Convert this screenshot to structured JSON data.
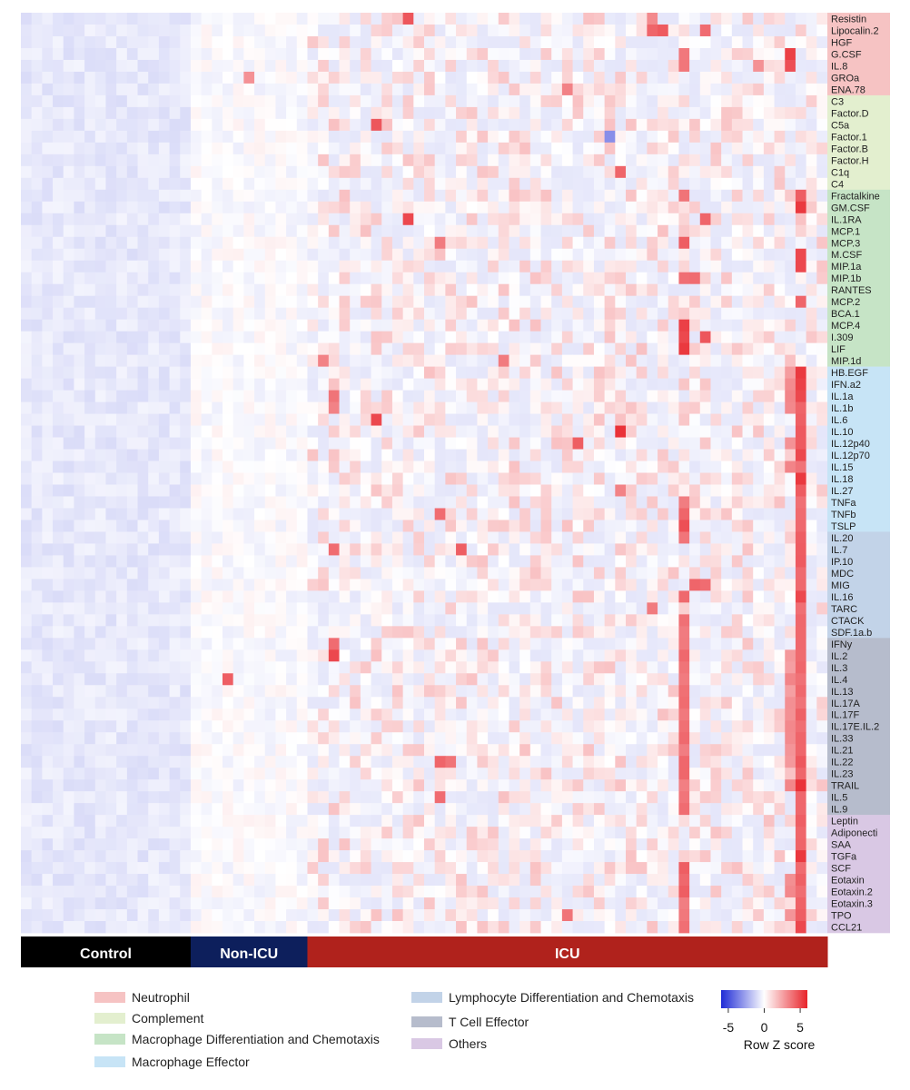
{
  "chart_data": {
    "type": "heatmap",
    "title": "",
    "colorbar": {
      "title": "Row Z score",
      "ticks": [
        -5,
        0,
        5
      ],
      "range": [
        -6,
        6
      ],
      "colors": {
        "low": "#1f2bd6",
        "mid": "#ffffff",
        "high": "#e8232a"
      }
    },
    "column_groups": [
      {
        "name": "Control",
        "count": 16,
        "color": "#000000"
      },
      {
        "name": "Non-ICU",
        "count": 11,
        "color": "#0d1f5c"
      },
      {
        "name": "ICU",
        "count": 49,
        "color": "#b0221c"
      }
    ],
    "row_groups": [
      {
        "name": "Neutrophil",
        "color": "#f6c3c3",
        "rows": [
          "Resistin",
          "Lipocalin.2",
          "HGF",
          "G.CSF",
          "IL.8",
          "GROa",
          "ENA.78"
        ]
      },
      {
        "name": "Complement",
        "color": "#e3efcf",
        "rows": [
          "C3",
          "Factor.D",
          "C5a",
          "Factor.1",
          "Factor.B",
          "Factor.H",
          "C1q",
          "C4"
        ]
      },
      {
        "name": "Macrophage Differentiation and Chemotaxis",
        "color": "#c6e4c6",
        "rows": [
          "Fractalkine",
          "GM.CSF",
          "IL.1RA",
          "MCP.1",
          "MCP.3",
          "M.CSF",
          "MIP.1a",
          "MIP.1b",
          "RANTES",
          "MCP.2",
          "BCA.1",
          "MCP.4",
          "I.309",
          "LIF",
          "MIP.1d"
        ]
      },
      {
        "name": "Macrophage Effector",
        "color": "#c7e4f6",
        "rows": [
          "HB.EGF",
          "IFN.a2",
          "IL.1a",
          "IL.1b",
          "IL.6",
          "IL.10",
          "IL.12p40",
          "IL.12p70",
          "IL.15",
          "IL.18",
          "IL.27",
          "TNFa",
          "TNFb",
          "TSLP"
        ]
      },
      {
        "name": "Lymphocyte Differentiation and Chemotaxis",
        "color": "#c2d3e8",
        "rows": [
          "IL.20",
          "IL.7",
          "IP.10",
          "MDC",
          "MIG",
          "IL.16",
          "TARC",
          "CTACK",
          "SDF.1a.b"
        ]
      },
      {
        "name": "T Cell Effector",
        "color": "#b6bccc",
        "rows": [
          "IFNy",
          "IL.2",
          "IL.3",
          "IL.4",
          "IL.13",
          "IL.17A",
          "IL.17F",
          "IL.17E.IL.2",
          "IL.33",
          "IL.21",
          "IL.22",
          "IL.23",
          "TRAIL",
          "IL.5",
          "IL.9"
        ]
      },
      {
        "name": "Others",
        "color": "#d9c8e4",
        "rows": [
          "Leptin",
          "Adiponecti",
          "SAA",
          "TGFa",
          "SCF",
          "Eotaxin",
          "Eotaxin.2",
          "Eotaxin.3",
          "TPO",
          "CCL21"
        ]
      }
    ],
    "n_columns": 76,
    "grid": false,
    "legend_position": "bottom",
    "hotspots": [
      {
        "row": "Resistin",
        "col": 36,
        "z": 4.6
      },
      {
        "row": "Resistin",
        "col": 59,
        "z": 3.2
      },
      {
        "row": "Lipocalin.2",
        "col": 59,
        "z": 4.2
      },
      {
        "row": "Lipocalin.2",
        "col": 60,
        "z": 4.5
      },
      {
        "row": "Lipocalin.2",
        "col": 64,
        "z": 4.0
      },
      {
        "row": "G.CSF",
        "col": 72,
        "z": 5.2
      },
      {
        "row": "IL.8",
        "col": 72,
        "z": 4.8
      },
      {
        "row": "IL.8",
        "col": 69,
        "z": 3.0
      },
      {
        "row": "GROa",
        "col": 21,
        "z": 3.0
      },
      {
        "row": "ENA.78",
        "col": 51,
        "z": 3.4
      },
      {
        "row": "C5a",
        "col": 33,
        "z": 4.6
      },
      {
        "row": "Factor.1",
        "col": 55,
        "z": -3.2
      },
      {
        "row": "C1q",
        "col": 56,
        "z": 4.2
      },
      {
        "row": "Fractalkine",
        "col": 62,
        "z": 3.8
      },
      {
        "row": "Fractalkine",
        "col": 73,
        "z": 4.4
      },
      {
        "row": "GM.CSF",
        "col": 73,
        "z": 5.4
      },
      {
        "row": "IL.1RA",
        "col": 36,
        "z": 5.0
      },
      {
        "row": "IL.1RA",
        "col": 64,
        "z": 4.2
      },
      {
        "row": "MCP.3",
        "col": 39,
        "z": 3.6
      },
      {
        "row": "MCP.3",
        "col": 62,
        "z": 4.4
      },
      {
        "row": "M.CSF",
        "col": 73,
        "z": 5.0
      },
      {
        "row": "MIP.1a",
        "col": 73,
        "z": 5.0
      },
      {
        "row": "MIP.1b",
        "col": 63,
        "z": 4.0
      },
      {
        "row": "MCP.2",
        "col": 73,
        "z": 4.2
      },
      {
        "row": "MCP.4",
        "col": 62,
        "z": 5.2
      },
      {
        "row": "I.309",
        "col": 62,
        "z": 5.0
      },
      {
        "row": "I.309",
        "col": 64,
        "z": 4.6
      },
      {
        "row": "LIF",
        "col": 62,
        "z": 5.4
      },
      {
        "row": "MIP.1d",
        "col": 28,
        "z": 3.4
      },
      {
        "row": "MIP.1d",
        "col": 45,
        "z": 3.6
      },
      {
        "row": "HB.EGF",
        "col": 73,
        "z": 5.4
      },
      {
        "row": "IFN.a2",
        "col": 73,
        "z": 5.2
      },
      {
        "row": "IL.1a",
        "col": 29,
        "z": 3.8
      },
      {
        "row": "IL.1a",
        "col": 73,
        "z": 5.0
      },
      {
        "row": "IL.1b",
        "col": 29,
        "z": 3.4
      },
      {
        "row": "IL.6",
        "col": 33,
        "z": 5.0
      },
      {
        "row": "IL.10",
        "col": 56,
        "z": 5.6
      },
      {
        "row": "IL.12p40",
        "col": 52,
        "z": 4.4
      },
      {
        "row": "IL.12p70",
        "col": 73,
        "z": 5.0
      },
      {
        "row": "IL.18",
        "col": 73,
        "z": 5.4
      },
      {
        "row": "IL.27",
        "col": 56,
        "z": 3.4
      },
      {
        "row": "TNFb",
        "col": 39,
        "z": 4.0
      },
      {
        "row": "TNFb",
        "col": 62,
        "z": 4.2
      },
      {
        "row": "TSLP",
        "col": 62,
        "z": 4.8
      },
      {
        "row": "IL.7",
        "col": 29,
        "z": 4.0
      },
      {
        "row": "IL.7",
        "col": 41,
        "z": 4.4
      },
      {
        "row": "MIG",
        "col": 63,
        "z": 4.2
      },
      {
        "row": "MIG",
        "col": 64,
        "z": 4.0
      },
      {
        "row": "IL.16",
        "col": 73,
        "z": 5.0
      },
      {
        "row": "TARC",
        "col": 59,
        "z": 3.6
      },
      {
        "row": "IFNy",
        "col": 29,
        "z": 4.0
      },
      {
        "row": "IL.2",
        "col": 29,
        "z": 5.0
      },
      {
        "row": "IL.4",
        "col": 19,
        "z": 4.4
      },
      {
        "row": "IL.22",
        "col": 39,
        "z": 4.2
      },
      {
        "row": "IL.22",
        "col": 40,
        "z": 3.8
      },
      {
        "row": "TRAIL",
        "col": 73,
        "z": 5.6
      },
      {
        "row": "IL.5",
        "col": 39,
        "z": 4.0
      },
      {
        "row": "TGFa",
        "col": 73,
        "z": 5.4
      },
      {
        "row": "SCF",
        "col": 62,
        "z": 4.4
      },
      {
        "row": "Eotaxin.2",
        "col": 62,
        "z": 4.4
      },
      {
        "row": "TPO",
        "col": 51,
        "z": 3.8
      },
      {
        "row": "CCL21",
        "col": 73,
        "z": 5.0
      }
    ],
    "hot_columns": [
      {
        "col": 62,
        "rows": [
          "G.CSF",
          "IL.8",
          "Fractalkine",
          "MCP.3",
          "MIP.1b",
          "MCP.4",
          "I.309",
          "LIF",
          "TNFa",
          "TNFb",
          "TSLP",
          "IL.20",
          "IL.16",
          "CTACK",
          "SDF.1a.b",
          "IFNy",
          "IL.2",
          "IL.3",
          "IL.4",
          "IL.13",
          "IL.17A",
          "IL.17F",
          "IL.17E.IL.2",
          "IL.33",
          "IL.21",
          "IL.22",
          "IL.23",
          "TRAIL",
          "IL.5",
          "IL.9",
          "SCF",
          "Eotaxin",
          "Eotaxin.2",
          "Eotaxin.3",
          "TPO",
          "CCL21"
        ],
        "z": 3.4
      },
      {
        "col": 73,
        "rows": [
          "HB.EGF",
          "IFN.a2",
          "IL.1a",
          "IL.1b",
          "IL.6",
          "IL.10",
          "IL.12p40",
          "IL.12p70",
          "IL.15",
          "IL.18",
          "IL.27",
          "TNFa",
          "TNFb",
          "TSLP",
          "IL.20",
          "IL.7",
          "IP.10",
          "MDC",
          "MIG",
          "IL.16",
          "TARC",
          "CTACK",
          "SDF.1a.b",
          "IFNy",
          "IL.2",
          "IL.3",
          "IL.4",
          "IL.13",
          "IL.17A",
          "IL.17F",
          "IL.17E.IL.2",
          "IL.33",
          "IL.21",
          "IL.22",
          "IL.23",
          "TRAIL",
          "IL.5",
          "IL.9",
          "Leptin",
          "Adiponecti",
          "SAA",
          "TGFa",
          "SCF",
          "Eotaxin",
          "Eotaxin.2",
          "Eotaxin.3",
          "TPO",
          "CCL21"
        ],
        "z": 3.8
      },
      {
        "col": 72,
        "rows": [
          "HB.EGF",
          "IFN.a2",
          "IL.1a",
          "IL.1b",
          "IL.12p40",
          "IL.15",
          "IL.2",
          "IL.3",
          "IL.4",
          "IL.13",
          "IL.17A",
          "IL.17F",
          "IL.17E.IL.2",
          "IL.33",
          "IL.21",
          "IL.22",
          "TRAIL",
          "Eotaxin",
          "Eotaxin.2",
          "TPO"
        ],
        "z": 2.6
      }
    ]
  }
}
